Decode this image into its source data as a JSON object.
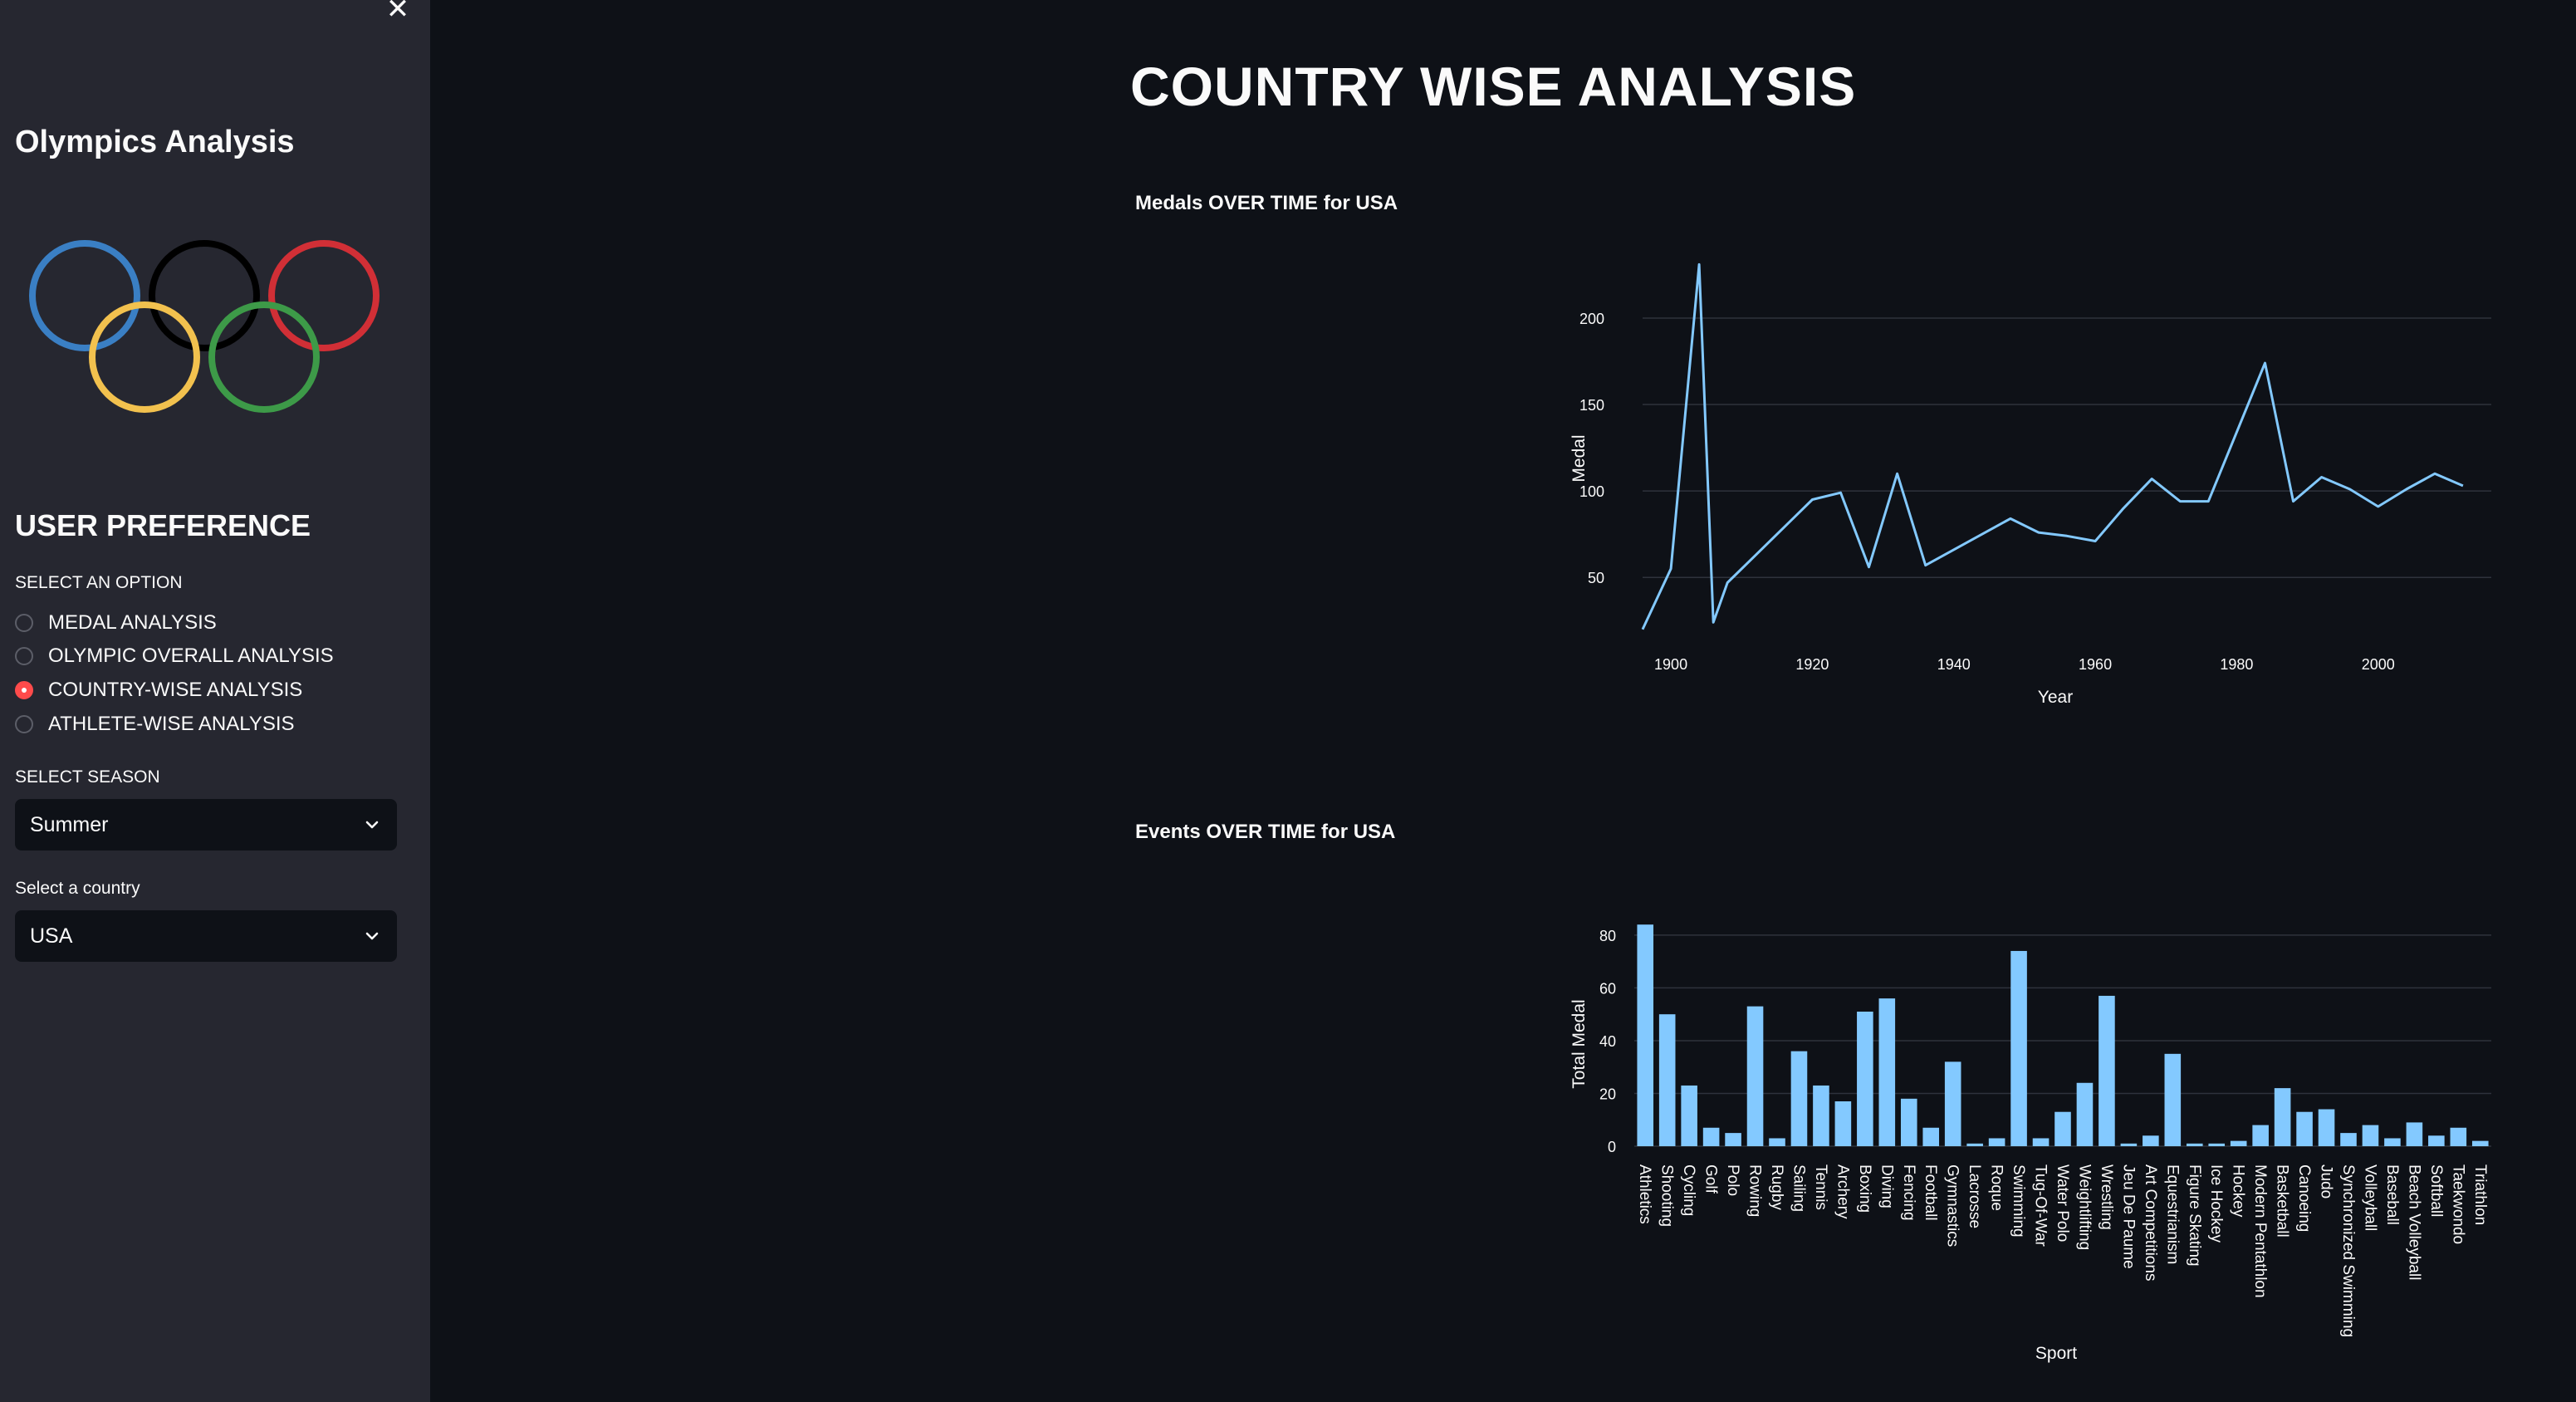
{
  "sidebar": {
    "close_symbol": "✕",
    "app_title": "Olympics Analysis",
    "logo_colors": [
      "#3a7fc4",
      "#000000",
      "#d12f36",
      "#f2c14e",
      "#3d9a48"
    ],
    "preference_title": "USER PREFERENCE",
    "option_label": "SELECT AN OPTION",
    "options": [
      {
        "label": "MEDAL ANALYSIS",
        "selected": false
      },
      {
        "label": "OLYMPIC OVERALL ANALYSIS",
        "selected": false
      },
      {
        "label": "COUNTRY-WISE ANALYSIS",
        "selected": true
      },
      {
        "label": "ATHLETE-WISE ANALYSIS",
        "selected": false
      }
    ],
    "season_label": "SELECT SEASON",
    "season_value": "Summer",
    "country_label": "Select a country",
    "country_value": "USA"
  },
  "main": {
    "page_title": "COUNTRY WISE ANALYSIS"
  },
  "theme": {
    "background": "#0e1117",
    "sidebar_background": "#262730",
    "accent": "#ff4b4b",
    "series_color": "#83c9ff"
  },
  "chart_data": [
    {
      "type": "line",
      "title": "Medals OVER TIME for USA",
      "xlabel": "Year",
      "ylabel": "Medal",
      "xlim": [
        1896,
        2016
      ],
      "ylim": [
        16,
        236
      ],
      "xticks": [
        1900,
        1920,
        1940,
        1960,
        1980,
        2000
      ],
      "yticks": [
        50,
        100,
        150,
        200
      ],
      "grid": true,
      "x": [
        1896,
        1900,
        1904,
        1906,
        1908,
        1912,
        1920,
        1924,
        1928,
        1932,
        1936,
        1948,
        1952,
        1956,
        1960,
        1964,
        1968,
        1972,
        1976,
        1984,
        1988,
        1992,
        1996,
        2000,
        2004,
        2008,
        2012
      ],
      "y": [
        20,
        55,
        231,
        24,
        47,
        63,
        95,
        99,
        56,
        110,
        57,
        84,
        76,
        74,
        71,
        90,
        107,
        94,
        94,
        174,
        94,
        108,
        101,
        91,
        101,
        110,
        103
      ],
      "series": [
        {
          "values": [
            20,
            55,
            231,
            24,
            47,
            63,
            95,
            99,
            56,
            110,
            57,
            84,
            76,
            74,
            71,
            90,
            107,
            94,
            94,
            174,
            94,
            108,
            101,
            91,
            101,
            110,
            103
          ]
        }
      ]
    },
    {
      "type": "bar",
      "title": "Events OVER TIME for USA",
      "xlabel": "Sport",
      "ylabel": "Total Medal",
      "ylim": [
        0,
        85
      ],
      "yticks": [
        0,
        20,
        40,
        60,
        80
      ],
      "grid": true,
      "categories": [
        "Athletics",
        "Shooting",
        "Cycling",
        "Golf",
        "Polo",
        "Rowing",
        "Rugby",
        "Sailing",
        "Tennis",
        "Archery",
        "Boxing",
        "Diving",
        "Fencing",
        "Football",
        "Gymnastics",
        "Lacrosse",
        "Roque",
        "Swimming",
        "Tug-Of-War",
        "Water Polo",
        "Weightlifting",
        "Wrestling",
        "Jeu De Paume",
        "Art Competitions",
        "Equestrianism",
        "Figure Skating",
        "Ice Hockey",
        "Hockey",
        "Modern Pentathlon",
        "Basketball",
        "Canoeing",
        "Judo",
        "Synchronized Swimming",
        "Volleyball",
        "Baseball",
        "Beach Volleyball",
        "Softball",
        "Taekwondo",
        "Triathlon"
      ],
      "values": [
        84,
        50,
        23,
        7,
        5,
        53,
        3,
        36,
        23,
        17,
        51,
        56,
        18,
        7,
        32,
        1,
        3,
        74,
        3,
        13,
        24,
        57,
        1,
        4,
        35,
        1,
        1,
        2,
        8,
        22,
        13,
        14,
        5,
        8,
        3,
        9,
        4,
        7,
        2
      ]
    }
  ]
}
